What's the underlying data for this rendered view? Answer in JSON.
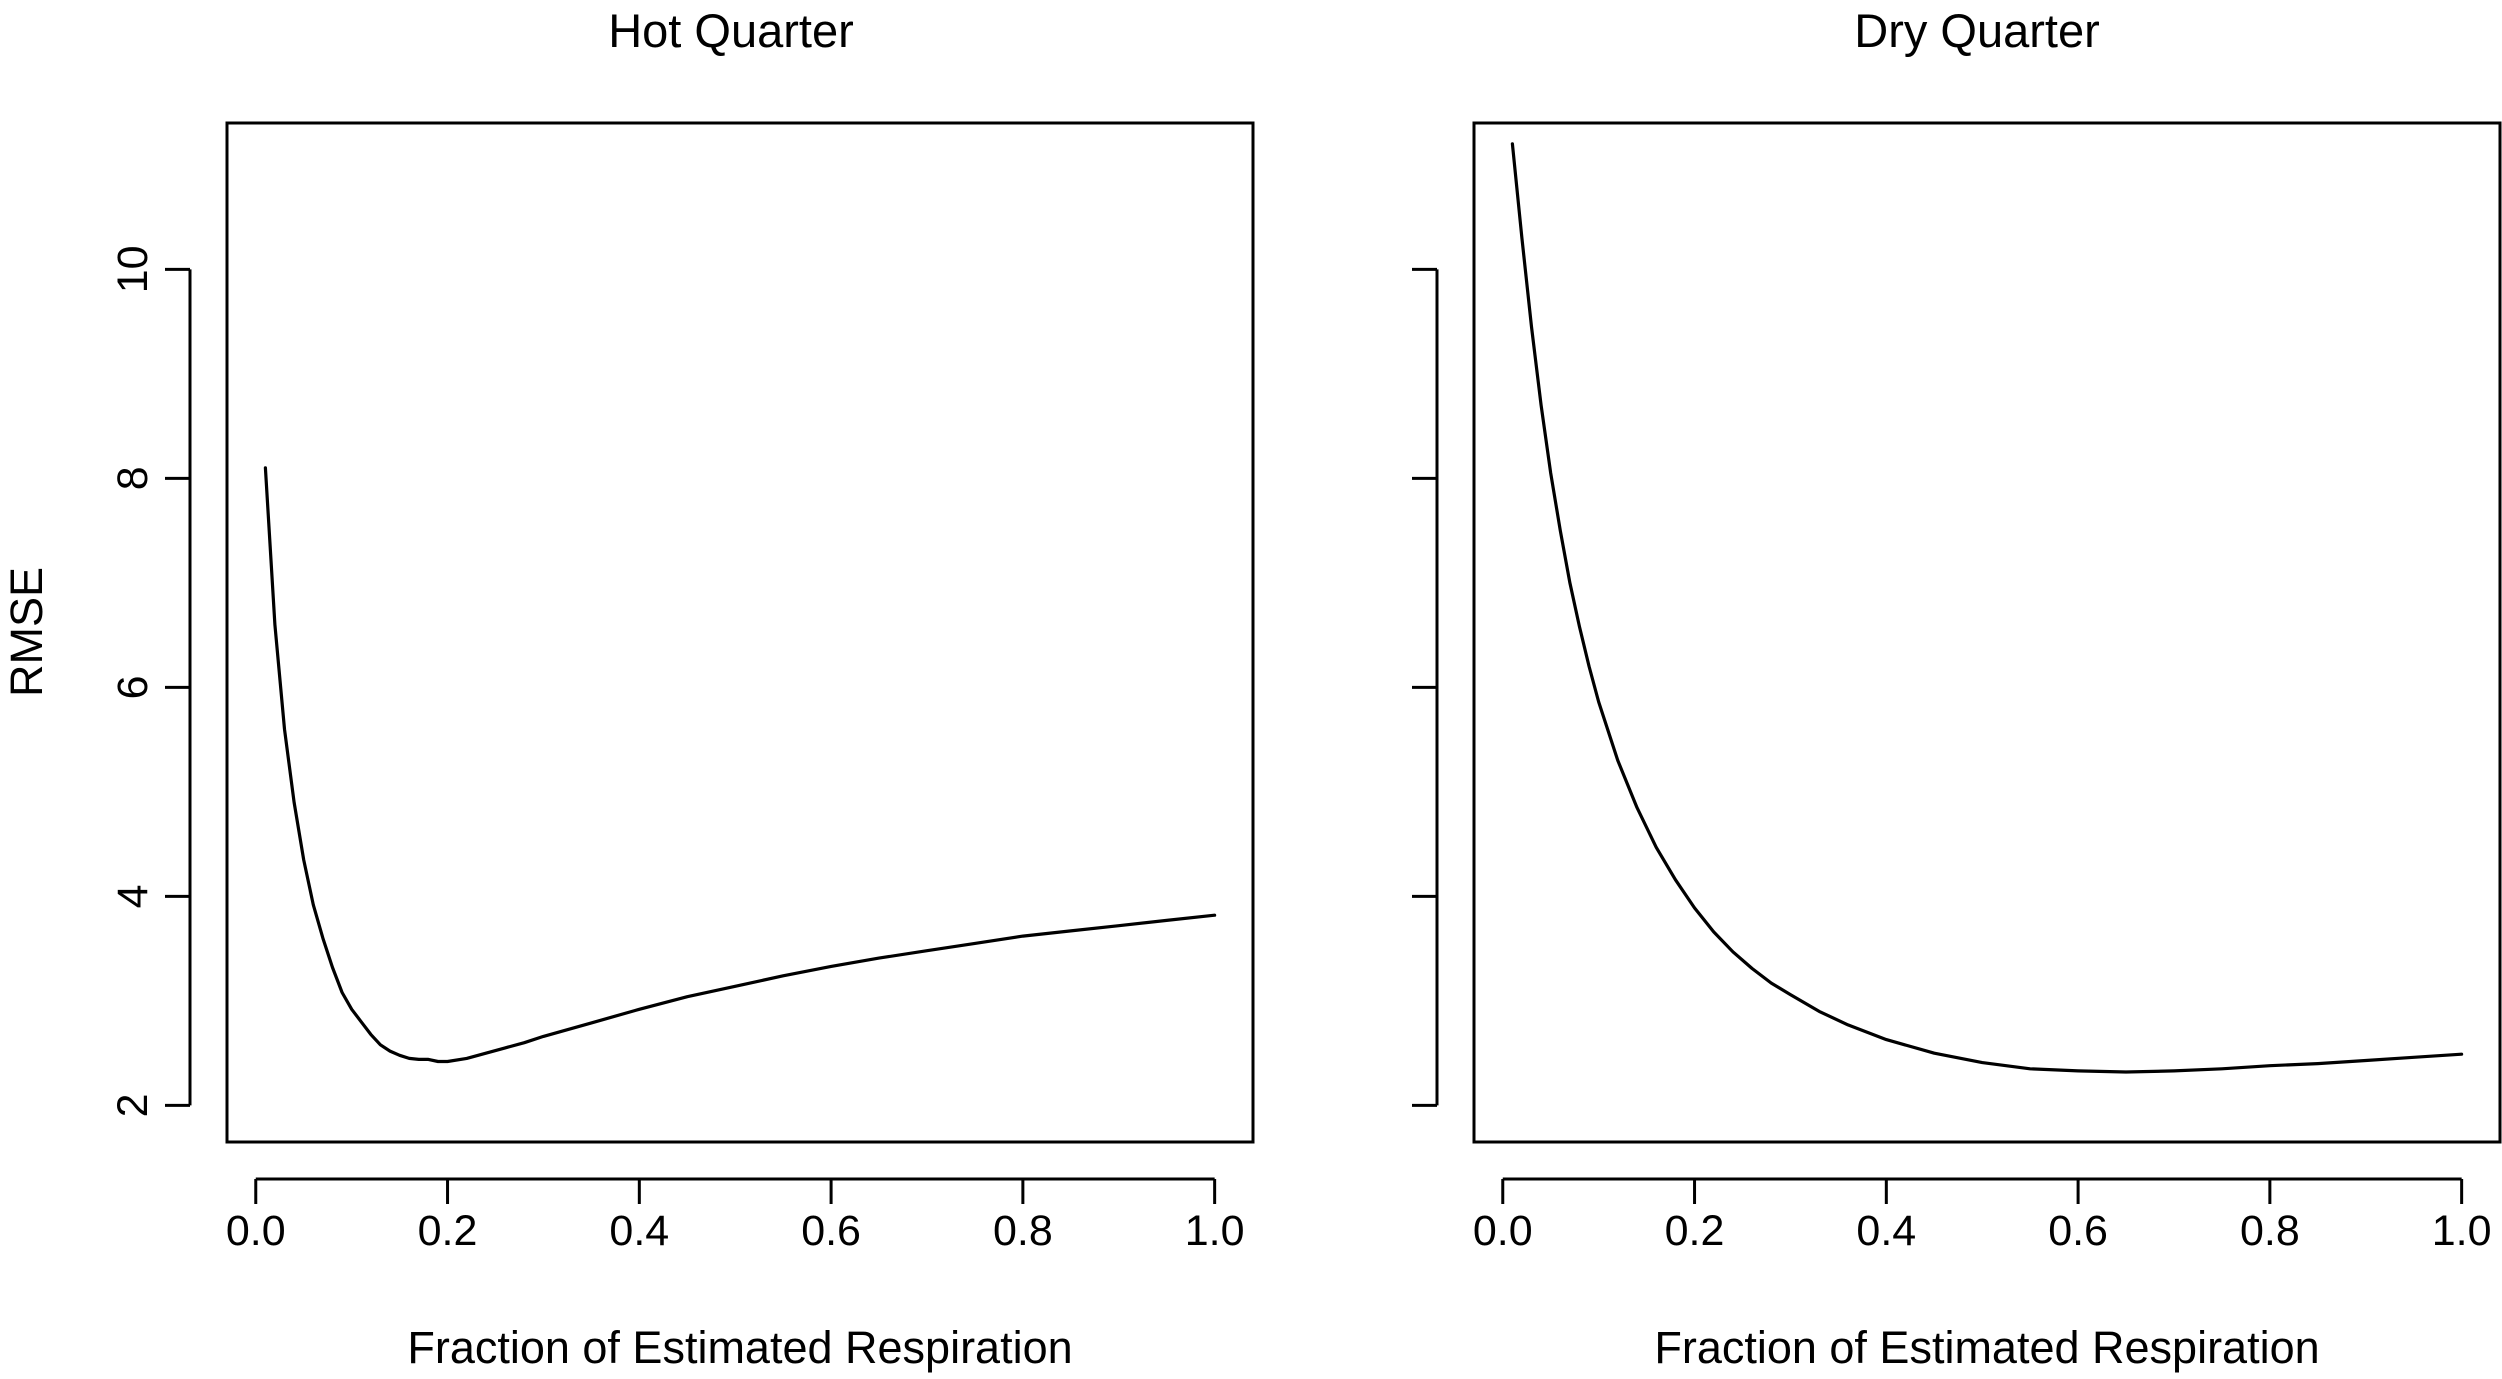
{
  "chart_data": [
    {
      "type": "line",
      "title": "Hot Quarter",
      "xlabel": "Fraction of Estimated Respiration",
      "ylabel": "RMSE",
      "xlim": [
        -0.03,
        1.04
      ],
      "ylim": [
        1.65,
        11.4
      ],
      "xticks": [
        0.0,
        0.2,
        0.4,
        0.6,
        0.8,
        1.0
      ],
      "xtick_labels": [
        "0.0",
        "0.2",
        "0.4",
        "0.6",
        "0.8",
        "1.0"
      ],
      "yticks": [
        2,
        4,
        6,
        8,
        10
      ],
      "ytick_labels": [
        "2",
        "4",
        "6",
        "8",
        "10"
      ],
      "show_ytick_labels": true,
      "grid": false,
      "series": [
        {
          "x": [
            0.01,
            0.02,
            0.03,
            0.04,
            0.05,
            0.06,
            0.07,
            0.08,
            0.09,
            0.1,
            0.11,
            0.12,
            0.13,
            0.14,
            0.15,
            0.16,
            0.17,
            0.18,
            0.19,
            0.2,
            0.22,
            0.24,
            0.26,
            0.28,
            0.3,
            0.35,
            0.4,
            0.45,
            0.5,
            0.55,
            0.6,
            0.65,
            0.7,
            0.75,
            0.8,
            0.85,
            0.9,
            0.95,
            1.0
          ],
          "y": [
            8.1,
            6.6,
            5.6,
            4.9,
            4.35,
            3.92,
            3.6,
            3.32,
            3.08,
            2.92,
            2.8,
            2.68,
            2.58,
            2.52,
            2.48,
            2.45,
            2.44,
            2.44,
            2.42,
            2.42,
            2.45,
            2.5,
            2.55,
            2.6,
            2.66,
            2.79,
            2.92,
            3.04,
            3.14,
            3.24,
            3.33,
            3.41,
            3.48,
            3.55,
            3.62,
            3.67,
            3.72,
            3.77,
            3.82
          ]
        }
      ]
    },
    {
      "type": "line",
      "title": "Dry Quarter",
      "xlabel": "Fraction of Estimated Respiration",
      "ylabel": "",
      "xlim": [
        -0.03,
        1.04
      ],
      "ylim": [
        1.65,
        11.4
      ],
      "xticks": [
        0.0,
        0.2,
        0.4,
        0.6,
        0.8,
        1.0
      ],
      "xtick_labels": [
        "0.0",
        "0.2",
        "0.4",
        "0.6",
        "0.8",
        "1.0"
      ],
      "yticks": [
        2,
        4,
        6,
        8,
        10
      ],
      "ytick_labels": [
        "",
        "",
        "",
        "",
        ""
      ],
      "show_ytick_labels": false,
      "grid": false,
      "series": [
        {
          "x": [
            0.01,
            0.02,
            0.03,
            0.04,
            0.05,
            0.06,
            0.07,
            0.08,
            0.09,
            0.1,
            0.12,
            0.14,
            0.16,
            0.18,
            0.2,
            0.22,
            0.24,
            0.26,
            0.28,
            0.3,
            0.33,
            0.36,
            0.4,
            0.45,
            0.5,
            0.55,
            0.6,
            0.65,
            0.7,
            0.75,
            0.8,
            0.85,
            0.9,
            0.95,
            1.0
          ],
          "y": [
            11.2,
            10.3,
            9.45,
            8.7,
            8.05,
            7.5,
            7.0,
            6.58,
            6.2,
            5.86,
            5.3,
            4.85,
            4.47,
            4.16,
            3.89,
            3.66,
            3.47,
            3.31,
            3.17,
            3.06,
            2.9,
            2.77,
            2.63,
            2.5,
            2.41,
            2.35,
            2.33,
            2.32,
            2.33,
            2.35,
            2.38,
            2.4,
            2.43,
            2.46,
            2.49
          ]
        }
      ]
    }
  ]
}
